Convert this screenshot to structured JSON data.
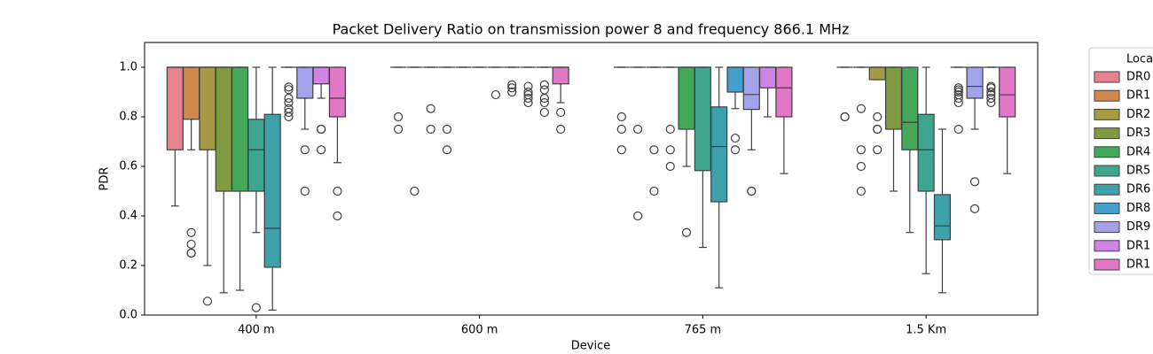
{
  "chart_data": {
    "type": "box",
    "title": "Packet Delivery Ratio on transmission power 8 and frequency 866.1 MHz",
    "x_label": "Device",
    "y_label": "PDR",
    "categories": [
      "400 m",
      "600 m",
      "765 m",
      "1.5 Km"
    ],
    "ylim": [
      0,
      1.1
    ],
    "yticks": [
      {
        "value": 0,
        "label": "0.0"
      },
      0.2,
      0.4,
      0.6,
      0.8,
      {
        "value": 1,
        "label": "1.0"
      }
    ],
    "legend_title": "Location",
    "series": [
      {
        "name": "DR0",
        "color": "#e8828e",
        "boxes": [
          {
            "whislo": 0.44,
            "q1": 0.667,
            "med": 1.0,
            "q3": 1.0,
            "whishi": 1.0,
            "fliers": []
          },
          {
            "whislo": 1.0,
            "q1": 1.0,
            "med": 1.0,
            "q3": 1.0,
            "whishi": 1.0,
            "fliers": [
              0.8,
              0.75
            ]
          },
          {
            "whislo": 1.0,
            "q1": 1.0,
            "med": 1.0,
            "q3": 1.0,
            "whishi": 1.0,
            "fliers": [
              0.8,
              0.75,
              0.667
            ]
          },
          {
            "whislo": 1.0,
            "q1": 1.0,
            "med": 1.0,
            "q3": 1.0,
            "whishi": 1.0,
            "fliers": [
              0.8,
              0.8
            ]
          }
        ]
      },
      {
        "name": "DR1",
        "color": "#d0894a",
        "boxes": [
          {
            "whislo": 0.667,
            "q1": 0.79,
            "med": 1.0,
            "q3": 1.0,
            "whishi": 1.0,
            "fliers": [
              0.333,
              0.286,
              0.25,
              0.25
            ]
          },
          {
            "whislo": 1.0,
            "q1": 1.0,
            "med": 1.0,
            "q3": 1.0,
            "whishi": 1.0,
            "fliers": [
              0.5
            ]
          },
          {
            "whislo": 1.0,
            "q1": 1.0,
            "med": 1.0,
            "q3": 1.0,
            "whishi": 1.0,
            "fliers": [
              0.75,
              0.4
            ]
          },
          {
            "whislo": 1.0,
            "q1": 1.0,
            "med": 1.0,
            "q3": 1.0,
            "whishi": 1.0,
            "fliers": [
              0.833,
              0.667,
              0.6,
              0.5
            ]
          }
        ]
      },
      {
        "name": "DR2",
        "color": "#a69a45",
        "boxes": [
          {
            "whislo": 0.2,
            "q1": 0.667,
            "med": 1.0,
            "q3": 1.0,
            "whishi": 1.0,
            "fliers": [
              0.056
            ]
          },
          {
            "whislo": 1.0,
            "q1": 1.0,
            "med": 1.0,
            "q3": 1.0,
            "whishi": 1.0,
            "fliers": [
              0.833,
              0.75
            ]
          },
          {
            "whislo": 1.0,
            "q1": 1.0,
            "med": 1.0,
            "q3": 1.0,
            "whishi": 1.0,
            "fliers": [
              0.667,
              0.5
            ]
          },
          {
            "whislo": 0.95,
            "q1": 0.95,
            "med": 1.0,
            "q3": 1.0,
            "whishi": 1.0,
            "fliers": [
              0.8,
              0.75,
              0.75,
              0.667
            ]
          }
        ]
      },
      {
        "name": "DR3",
        "color": "#7f9b42",
        "boxes": [
          {
            "whislo": 0.09,
            "q1": 0.5,
            "med": 1.0,
            "q3": 1.0,
            "whishi": 1.0,
            "fliers": []
          },
          {
            "whislo": 1.0,
            "q1": 1.0,
            "med": 1.0,
            "q3": 1.0,
            "whishi": 1.0,
            "fliers": [
              0.75,
              0.667
            ]
          },
          {
            "whislo": 1.0,
            "q1": 1.0,
            "med": 1.0,
            "q3": 1.0,
            "whishi": 1.0,
            "fliers": [
              0.75,
              0.667,
              0.6
            ]
          },
          {
            "whislo": 0.5,
            "q1": 0.75,
            "med": 1.0,
            "q3": 1.0,
            "whishi": 1.0,
            "fliers": []
          }
        ]
      },
      {
        "name": "DR4",
        "color": "#44a85a",
        "boxes": [
          {
            "whislo": 0.1,
            "q1": 0.5,
            "med": 1.0,
            "q3": 1.0,
            "whishi": 1.0,
            "fliers": []
          },
          {
            "whislo": 1.0,
            "q1": 1.0,
            "med": 1.0,
            "q3": 1.0,
            "whishi": 1.0,
            "fliers": []
          },
          {
            "whislo": 0.6,
            "q1": 0.75,
            "med": 1.0,
            "q3": 1.0,
            "whishi": 1.0,
            "fliers": [
              0.333
            ]
          },
          {
            "whislo": 0.333,
            "q1": 0.667,
            "med": 0.778,
            "q3": 1.0,
            "whishi": 1.0,
            "fliers": []
          }
        ]
      },
      {
        "name": "DR5",
        "color": "#3ea58e",
        "boxes": [
          {
            "whislo": 0.333,
            "q1": 0.5,
            "med": 0.667,
            "q3": 0.79,
            "whishi": 1.0,
            "fliers": [
              0.03
            ]
          },
          {
            "whislo": 1.0,
            "q1": 1.0,
            "med": 1.0,
            "q3": 1.0,
            "whishi": 1.0,
            "fliers": []
          },
          {
            "whislo": 0.273,
            "q1": 0.583,
            "med": 1.0,
            "q3": 1.0,
            "whishi": 1.0,
            "fliers": []
          },
          {
            "whislo": 0.167,
            "q1": 0.5,
            "med": 0.667,
            "q3": 0.81,
            "whishi": 1.0,
            "fliers": []
          }
        ]
      },
      {
        "name": "DR6",
        "color": "#3ea0a8",
        "boxes": [
          {
            "whislo": 0.02,
            "q1": 0.193,
            "med": 0.35,
            "q3": 0.81,
            "whishi": 1.0,
            "fliers": []
          },
          {
            "whislo": 1.0,
            "q1": 1.0,
            "med": 1.0,
            "q3": 1.0,
            "whishi": 1.0,
            "fliers": [
              0.889
            ]
          },
          {
            "whislo": 0.11,
            "q1": 0.457,
            "med": 0.68,
            "q3": 0.84,
            "whishi": 1.0,
            "fliers": []
          },
          {
            "whislo": 0.09,
            "q1": 0.304,
            "med": 0.36,
            "q3": 0.486,
            "whishi": 0.75,
            "fliers": []
          }
        ]
      },
      {
        "name": "DR8",
        "color": "#43a0cc",
        "boxes": [
          {
            "whislo": 1.0,
            "q1": 1.0,
            "med": 1.0,
            "q3": 1.0,
            "whishi": 1.0,
            "fliers": [
              0.92,
              0.91,
              0.875,
              0.857,
              0.833,
              0.818,
              0.8
            ]
          },
          {
            "whislo": 1.0,
            "q1": 1.0,
            "med": 1.0,
            "q3": 1.0,
            "whishi": 1.0,
            "fliers": [
              0.929,
              0.917,
              0.9
            ]
          },
          {
            "whislo": 0.833,
            "q1": 0.9,
            "med": 1.0,
            "q3": 1.0,
            "whishi": 1.0,
            "fliers": [
              0.714,
              0.667
            ]
          },
          {
            "whislo": 1.0,
            "q1": 1.0,
            "med": 1.0,
            "q3": 1.0,
            "whishi": 1.0,
            "fliers": [
              0.917,
              0.909,
              0.9,
              0.889,
              0.875,
              0.857,
              0.75
            ]
          }
        ]
      },
      {
        "name": "DR9",
        "color": "#a3a3ec",
        "boxes": [
          {
            "whislo": 0.75,
            "q1": 0.875,
            "med": 1.0,
            "q3": 1.0,
            "whishi": 1.0,
            "fliers": [
              0.667,
              0.5
            ]
          },
          {
            "whislo": 1.0,
            "q1": 1.0,
            "med": 1.0,
            "q3": 1.0,
            "whishi": 1.0,
            "fliers": [
              0.923,
              0.9,
              0.889,
              0.875,
              0.857
            ]
          },
          {
            "whislo": 0.667,
            "q1": 0.83,
            "med": 0.89,
            "q3": 1.0,
            "whishi": 1.0,
            "fliers": [
              0.5,
              0.5
            ]
          },
          {
            "whislo": 0.75,
            "q1": 0.875,
            "med": 0.923,
            "q3": 1.0,
            "whishi": 1.0,
            "fliers": [
              0.538,
              0.429
            ]
          }
        ]
      },
      {
        "name": "DR1",
        "color": "#cf82e8",
        "boxes": [
          {
            "whislo": 0.875,
            "q1": 0.933,
            "med": 1.0,
            "q3": 1.0,
            "whishi": 1.0,
            "fliers": [
              0.75,
              0.75,
              0.667
            ]
          },
          {
            "whislo": 1.0,
            "q1": 1.0,
            "med": 1.0,
            "q3": 1.0,
            "whishi": 1.0,
            "fliers": [
              0.929,
              0.909,
              0.875,
              0.857,
              0.818
            ]
          },
          {
            "whislo": 0.8,
            "q1": 0.917,
            "med": 1.0,
            "q3": 1.0,
            "whishi": 1.0,
            "fliers": []
          },
          {
            "whislo": 1.0,
            "q1": 1.0,
            "med": 1.0,
            "q3": 1.0,
            "whishi": 1.0,
            "fliers": [
              0.923,
              0.917,
              0.9,
              0.889,
              0.875,
              0.857
            ]
          }
        ]
      },
      {
        "name": "DR1",
        "color": "#e277c8",
        "boxes": [
          {
            "whislo": 0.615,
            "q1": 0.8,
            "med": 0.875,
            "q3": 1.0,
            "whishi": 1.0,
            "fliers": [
              0.5,
              0.4
            ]
          },
          {
            "whislo": 0.857,
            "q1": 0.933,
            "med": 1.0,
            "q3": 1.0,
            "whishi": 1.0,
            "fliers": [
              0.818,
              0.75
            ]
          },
          {
            "whislo": 0.571,
            "q1": 0.8,
            "med": 0.917,
            "q3": 1.0,
            "whishi": 1.0,
            "fliers": []
          },
          {
            "whislo": 0.571,
            "q1": 0.8,
            "med": 0.889,
            "q3": 1.0,
            "whishi": 1.0,
            "fliers": []
          }
        ]
      }
    ]
  }
}
